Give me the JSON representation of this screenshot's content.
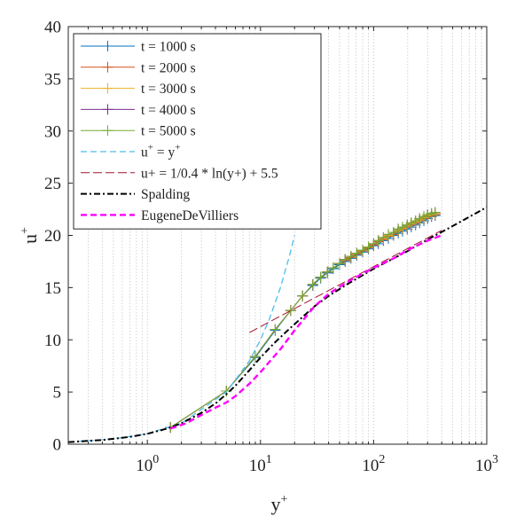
{
  "chart_data": {
    "type": "line",
    "x_scale": "log",
    "xlim": [
      0.2,
      1000
    ],
    "ylim": [
      0,
      40
    ],
    "grid": "vertical-minor-dotted",
    "legend_position": "top-left",
    "xlabel": "y",
    "xlabel_sup": "+",
    "ylabel": "u",
    "ylabel_sup": "+",
    "x_ticks": [
      {
        "value": 1,
        "base": "10",
        "exp": "0"
      },
      {
        "value": 10,
        "base": "10",
        "exp": "1"
      },
      {
        "value": 100,
        "base": "10",
        "exp": "2"
      },
      {
        "value": 1000,
        "base": "10",
        "exp": "3"
      }
    ],
    "y_ticks": [
      {
        "value": 0,
        "label": "0"
      },
      {
        "value": 5,
        "label": "5"
      },
      {
        "value": 10,
        "label": "10"
      },
      {
        "value": 15,
        "label": "15"
      },
      {
        "value": 20,
        "label": "20"
      },
      {
        "value": 25,
        "label": "25"
      },
      {
        "value": 30,
        "label": "30"
      },
      {
        "value": 35,
        "label": "35"
      },
      {
        "value": 40,
        "label": "40"
      }
    ],
    "series": [
      {
        "name": "t = 1000 s",
        "color": "#0072BD",
        "style": "solid-plus",
        "x": [
          1.6,
          5,
          9,
          13.5,
          18.5,
          23.5,
          29,
          34,
          39,
          44,
          50,
          56,
          63,
          71,
          80,
          90,
          100,
          110,
          122,
          135,
          150,
          165,
          180,
          198,
          215,
          235,
          255,
          278,
          300,
          325,
          350
        ],
        "y": [
          1.6,
          5.1,
          8.3,
          10.9,
          12.8,
          14.2,
          15.2,
          15.9,
          16.4,
          16.8,
          17.2,
          17.5,
          17.8,
          18.1,
          18.4,
          18.7,
          19.0,
          19.2,
          19.5,
          19.7,
          20.0,
          20.2,
          20.4,
          20.6,
          20.8,
          21.0,
          21.2,
          21.4,
          21.6,
          21.8,
          21.9
        ]
      },
      {
        "name": "t = 2000 s",
        "color": "#D95319",
        "style": "solid-plus",
        "x": [
          1.6,
          5,
          9,
          13.5,
          18.5,
          23.5,
          29,
          34,
          39,
          44,
          50,
          56,
          63,
          71,
          80,
          90,
          100,
          110,
          122,
          135,
          150,
          165,
          180,
          198,
          215,
          235,
          255,
          278,
          300,
          325,
          350
        ],
        "y": [
          1.6,
          5.1,
          8.4,
          11.0,
          12.8,
          14.2,
          15.3,
          16.0,
          16.5,
          16.9,
          17.3,
          17.6,
          17.9,
          18.2,
          18.5,
          18.8,
          19.1,
          19.4,
          19.6,
          19.9,
          20.1,
          20.4,
          20.6,
          20.8,
          21.0,
          21.2,
          21.4,
          21.6,
          21.8,
          21.9,
          22.0
        ]
      },
      {
        "name": "t = 3000 s",
        "color": "#EDB120",
        "style": "solid-plus",
        "x": [
          1.6,
          5,
          9,
          13.5,
          18.5,
          23.5,
          29,
          34,
          39,
          44,
          50,
          56,
          63,
          71,
          80,
          90,
          100,
          110,
          122,
          135,
          150,
          165,
          180,
          198,
          215,
          235,
          255,
          278,
          300,
          325,
          350
        ],
        "y": [
          1.6,
          5.1,
          8.4,
          11.0,
          12.8,
          14.2,
          15.3,
          16.0,
          16.5,
          16.9,
          17.3,
          17.7,
          18.0,
          18.3,
          18.6,
          18.9,
          19.2,
          19.5,
          19.7,
          20.0,
          20.3,
          20.5,
          20.7,
          20.9,
          21.1,
          21.3,
          21.5,
          21.7,
          21.9,
          22.0,
          22.1
        ]
      },
      {
        "name": "t = 4000 s",
        "color": "#7E2F8E",
        "style": "solid-plus",
        "x": [
          1.6,
          5,
          9,
          13.5,
          18.5,
          23.5,
          29,
          34,
          39,
          44,
          50,
          56,
          63,
          71,
          80,
          90,
          100,
          110,
          122,
          135,
          150,
          165,
          180,
          198,
          215,
          235,
          255,
          278,
          300,
          325,
          350
        ],
        "y": [
          1.6,
          5.1,
          8.4,
          11.0,
          12.8,
          14.2,
          15.3,
          16.0,
          16.5,
          16.9,
          17.3,
          17.7,
          18.0,
          18.3,
          18.6,
          18.9,
          19.2,
          19.5,
          19.8,
          20.1,
          20.3,
          20.6,
          20.8,
          21.0,
          21.2,
          21.4,
          21.6,
          21.8,
          22.0,
          22.1,
          22.2
        ]
      },
      {
        "name": "t = 5000 s",
        "color": "#77AC30",
        "style": "solid-plus",
        "x": [
          1.6,
          5,
          9,
          13.5,
          18.5,
          23.5,
          29,
          34,
          39,
          44,
          50,
          56,
          63,
          71,
          80,
          90,
          100,
          110,
          122,
          135,
          150,
          165,
          180,
          198,
          215,
          235,
          255,
          278,
          300,
          325,
          350
        ],
        "y": [
          1.6,
          5.1,
          8.4,
          11.0,
          12.8,
          14.2,
          15.3,
          16.0,
          16.5,
          16.9,
          17.3,
          17.7,
          18.0,
          18.3,
          18.6,
          18.9,
          19.2,
          19.5,
          19.8,
          20.1,
          20.3,
          20.6,
          20.8,
          21.0,
          21.2,
          21.4,
          21.6,
          21.8,
          22.0,
          22.1,
          22.2
        ]
      },
      {
        "name": "u",
        "name_sup": "+",
        "name_mid": " = y",
        "name_sup2": "+",
        "color": "#4DBEEE",
        "style": "dashed",
        "x": [
          0.2,
          0.5,
          1,
          2,
          5,
          8,
          10,
          12,
          15,
          18,
          20
        ],
        "y": [
          0.2,
          0.5,
          1,
          2,
          5,
          8,
          10,
          12,
          15,
          18,
          20
        ]
      },
      {
        "name": "u+ = 1/0.4 * ln(y+) + 5.5",
        "color": "#A2142F",
        "style": "dashed-thin",
        "x": [
          8,
          10,
          20,
          50,
          100,
          200,
          400
        ],
        "y": [
          10.7,
          11.26,
          12.99,
          15.28,
          17.01,
          18.75,
          20.48
        ]
      },
      {
        "name": "Spalding",
        "color": "#000000",
        "style": "dashdot",
        "x": [
          0.2,
          0.4,
          0.7,
          1,
          1.5,
          2,
          3,
          4,
          5,
          6,
          8,
          10,
          13,
          17,
          22,
          30,
          40,
          60,
          100,
          150,
          200,
          300,
          500,
          1000
        ],
        "y": [
          0.2,
          0.4,
          0.7,
          1.0,
          1.5,
          2.0,
          3.0,
          3.9,
          4.8,
          5.6,
          7.1,
          8.3,
          9.6,
          10.8,
          11.9,
          13.2,
          14.2,
          15.4,
          16.8,
          17.8,
          18.5,
          19.6,
          20.9,
          22.7
        ]
      },
      {
        "name": "EugeneDeVilliers",
        "color": "#FF00FF",
        "style": "dashed-bold",
        "x": [
          1.6,
          2.2,
          3,
          4,
          5,
          6,
          8,
          10,
          12,
          15,
          20,
          30,
          40,
          60,
          100,
          150,
          200,
          300,
          400
        ],
        "y": [
          1.5,
          2.0,
          2.8,
          3.5,
          4.0,
          4.6,
          5.8,
          6.9,
          7.9,
          9.1,
          10.9,
          13.2,
          14.4,
          15.6,
          16.9,
          17.8,
          18.6,
          19.5,
          20.0
        ]
      }
    ]
  }
}
